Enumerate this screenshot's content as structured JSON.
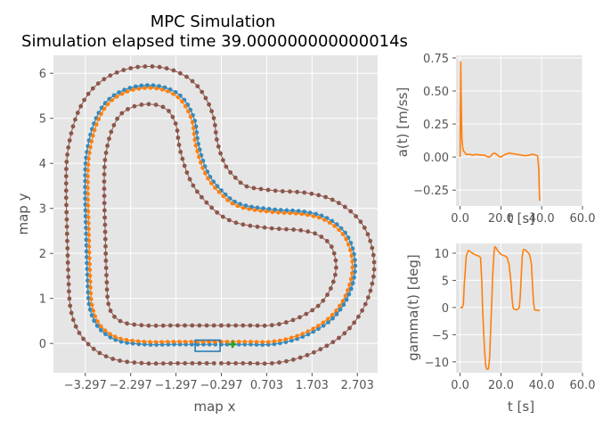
{
  "figure": {
    "title": "MPC Simulation",
    "subtitle": "Simulation elapsed time 39.000000000000014s"
  },
  "colors": {
    "panel_bg": "#e5e5e5",
    "grid": "#ffffff",
    "course": "#348abd",
    "trajectory": "#ff7f0e",
    "road_edge": "#8c564b",
    "vehicle": "#1f77b4",
    "goal": "#2ca02c",
    "series": "#ff7f0e"
  },
  "chart_data": [
    {
      "id": "map",
      "type": "line",
      "xlabel": "map x",
      "ylabel": "map y",
      "xticks": [
        -3.297,
        -2.297,
        -1.297,
        -0.297,
        0.703,
        1.703,
        2.703
      ],
      "xtick_labels": [
        "−3.297",
        "−2.297",
        "−1.297",
        "−0.297",
        "0.703",
        "1.703",
        "2.703"
      ],
      "yticks": [
        0,
        1,
        2,
        3,
        4,
        5,
        6
      ],
      "ytick_labels": [
        "0",
        "1",
        "2",
        "3",
        "4",
        "5",
        "6"
      ],
      "xlim": [
        -4.0,
        3.15
      ],
      "ylim": [
        -0.65,
        6.4
      ],
      "grid": true,
      "centerline": [
        [
          -0.3,
          -0.02
        ],
        [
          0.3,
          -0.02
        ],
        [
          0.8,
          -0.02
        ],
        [
          1.3,
          0.08
        ],
        [
          1.8,
          0.3
        ],
        [
          2.2,
          0.6
        ],
        [
          2.5,
          1.05
        ],
        [
          2.65,
          1.6
        ],
        [
          2.6,
          2.1
        ],
        [
          2.4,
          2.5
        ],
        [
          2.0,
          2.8
        ],
        [
          1.5,
          2.93
        ],
        [
          0.8,
          2.98
        ],
        [
          0.1,
          3.1
        ],
        [
          -0.3,
          3.4
        ],
        [
          -0.6,
          3.8
        ],
        [
          -0.8,
          4.4
        ],
        [
          -0.9,
          5.0
        ],
        [
          -1.2,
          5.5
        ],
        [
          -1.7,
          5.72
        ],
        [
          -2.3,
          5.68
        ],
        [
          -2.8,
          5.4
        ],
        [
          -3.1,
          4.9
        ],
        [
          -3.27,
          4.2
        ],
        [
          -3.3,
          3.5
        ],
        [
          -3.28,
          2.5
        ],
        [
          -3.25,
          1.5
        ],
        [
          -3.2,
          0.8
        ],
        [
          -3.0,
          0.35
        ],
        [
          -2.6,
          0.07
        ],
        [
          -2.0,
          -0.02
        ],
        [
          -1.3,
          -0.02
        ],
        [
          -0.8,
          -0.02
        ],
        [
          -0.3,
          -0.02
        ]
      ],
      "trajectory_offset": -0.06,
      "road_outer_offset": 0.42,
      "road_inner_offset": -0.42,
      "vehicle": {
        "x": -0.6,
        "y": -0.05,
        "length": 0.55,
        "width": 0.25
      },
      "goal_marker": {
        "x": -0.05,
        "y": -0.02
      }
    },
    {
      "id": "acceleration",
      "type": "line",
      "xlabel": "t [s]",
      "ylabel": "a(t) [m/ss]",
      "xticks": [
        0,
        20,
        40,
        60
      ],
      "xtick_labels": [
        "0.0",
        "20.0",
        "40.0",
        "60.0"
      ],
      "yticks": [
        -0.25,
        0,
        0.25,
        0.5,
        0.75
      ],
      "ytick_labels": [
        "−0.25",
        "0.00",
        "0.25",
        "0.50",
        "0.75"
      ],
      "xlim": [
        -2,
        60
      ],
      "ylim": [
        -0.37,
        0.77
      ],
      "grid": true,
      "x": [
        0,
        0.3,
        0.6,
        0.9,
        1.2,
        1.6,
        2.0,
        2.5,
        3,
        4,
        5,
        6,
        8,
        10,
        12,
        13,
        14,
        15,
        16,
        17,
        18,
        19,
        20,
        22,
        24,
        26,
        28,
        30,
        32,
        34,
        35,
        36,
        37,
        38,
        38.5,
        39
      ],
      "y": [
        0.0,
        0.72,
        0.35,
        0.15,
        0.08,
        0.05,
        0.04,
        0.03,
        0.02,
        0.02,
        0.02,
        0.015,
        0.02,
        0.015,
        0.015,
        0.005,
        0.0,
        0.005,
        0.025,
        0.03,
        0.02,
        0.005,
        0.0,
        0.02,
        0.03,
        0.025,
        0.02,
        0.015,
        0.01,
        0.015,
        0.02,
        0.02,
        0.015,
        0.01,
        -0.08,
        -0.33
      ]
    },
    {
      "id": "steering",
      "type": "line",
      "xlabel": "t [s]",
      "ylabel": "gamma(t) [deg]",
      "xticks": [
        0,
        20,
        40,
        60
      ],
      "xtick_labels": [
        "0.0",
        "20.0",
        "40.0",
        "60.0"
      ],
      "yticks": [
        -10,
        -5,
        0,
        5,
        10
      ],
      "ytick_labels": [
        "−10",
        "−5",
        "0",
        "5",
        "10"
      ],
      "xlim": [
        -2,
        60
      ],
      "ylim": [
        -12.0,
        11.8
      ],
      "grid": true,
      "x": [
        0,
        1,
        1.6,
        2.0,
        3,
        4,
        5,
        6,
        7,
        8,
        9,
        10,
        10.6,
        11,
        11.5,
        12,
        12.5,
        13,
        13.5,
        14,
        14.5,
        15,
        15.5,
        16,
        16.6,
        17,
        17.6,
        18,
        19,
        20,
        21,
        22,
        23,
        24,
        25,
        25.5,
        26,
        26.5,
        27,
        27.5,
        28,
        28.5,
        29,
        29.5,
        30,
        30.5,
        31,
        31.5,
        32,
        33,
        34,
        35,
        35.5,
        36,
        36.5,
        37,
        38,
        39
      ],
      "y": [
        0,
        0,
        0.5,
        4,
        9.5,
        10.5,
        10.3,
        10,
        9.8,
        9.6,
        9.5,
        9.2,
        5,
        0,
        -4,
        -8,
        -10.5,
        -11.3,
        -11.4,
        -11.2,
        -9,
        -4,
        1,
        6,
        10,
        11.2,
        11.0,
        10.7,
        10.2,
        9.8,
        9.6,
        9.5,
        9.2,
        8,
        4.5,
        1.5,
        0,
        -0.3,
        -0.4,
        -0.4,
        -0.4,
        -0.2,
        0,
        2,
        6,
        9.5,
        10.6,
        10.7,
        10.6,
        10.2,
        9.8,
        8,
        4,
        1,
        -0.4,
        -0.5,
        -0.5,
        -0.6
      ]
    }
  ]
}
